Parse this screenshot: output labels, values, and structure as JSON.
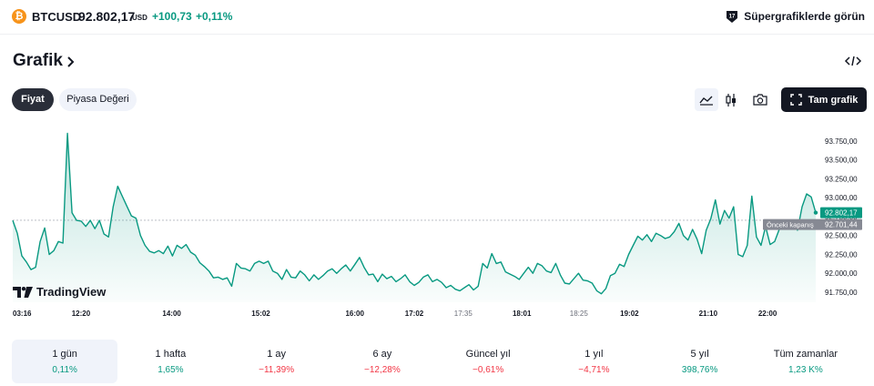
{
  "ticker": {
    "icon_glyph": "₿",
    "symbol": "BTCUSD",
    "price": "92.802,17",
    "currency": "USD",
    "change": "+100,73",
    "change_pct": "+0,11%",
    "super_link": "Süpergrafiklerde görün"
  },
  "header": {
    "title": "Grafik"
  },
  "tabs": [
    {
      "label": "Fiyat"
    },
    {
      "label": "Piyasa Değeri"
    }
  ],
  "toolbar": {
    "fullscreen_label": "Tam grafik"
  },
  "chart_data": {
    "type": "area",
    "color": "#089981",
    "yticks": [
      "93.750,00",
      "93.500,00",
      "93.250,00",
      "93.000,00",
      "92.750,00",
      "92.500,00",
      "92.250,00",
      "92.000,00",
      "91.750,00"
    ],
    "ytick_values": [
      93750,
      93500,
      93250,
      93000,
      92750,
      92500,
      92250,
      92000,
      91750
    ],
    "ylim": [
      91690,
      94000
    ],
    "xticks": [
      {
        "label": "03:16",
        "bold": true,
        "pos": 0.0
      },
      {
        "label": "12:20",
        "bold": true,
        "pos": 0.085
      },
      {
        "label": "14:00",
        "bold": true,
        "pos": 0.198
      },
      {
        "label": "15:02",
        "bold": true,
        "pos": 0.309
      },
      {
        "label": "16:00",
        "bold": true,
        "pos": 0.426
      },
      {
        "label": "17:02",
        "bold": true,
        "pos": 0.5
      },
      {
        "label": "17:35",
        "bold": false,
        "pos": 0.561
      },
      {
        "label": "18:01",
        "bold": true,
        "pos": 0.634
      },
      {
        "label": "18:25",
        "bold": false,
        "pos": 0.705
      },
      {
        "label": "19:02",
        "bold": true,
        "pos": 0.768
      },
      {
        "label": "21:10",
        "bold": true,
        "pos": 0.866
      },
      {
        "label": "22:00",
        "bold": true,
        "pos": 0.94
      }
    ],
    "values": [
      92700,
      92530,
      92230,
      92150,
      92050,
      92080,
      92420,
      92600,
      92250,
      92300,
      92420,
      92400,
      93850,
      92800,
      92700,
      92690,
      92620,
      92700,
      92590,
      92700,
      92520,
      92480,
      92880,
      93150,
      93020,
      92890,
      92760,
      92730,
      92500,
      92370,
      92290,
      92270,
      92300,
      92260,
      92360,
      92230,
      92370,
      92330,
      92380,
      92280,
      92240,
      92140,
      92090,
      92030,
      91940,
      91950,
      91920,
      91940,
      91830,
      92130,
      92070,
      92060,
      92030,
      92130,
      92160,
      92130,
      92160,
      92030,
      92000,
      91920,
      92050,
      91950,
      91940,
      92030,
      91980,
      91900,
      91980,
      91920,
      91970,
      92030,
      92060,
      92000,
      92060,
      92110,
      92030,
      92120,
      92210,
      92080,
      91980,
      91990,
      91890,
      91990,
      91930,
      91960,
      91890,
      91930,
      91980,
      91890,
      91840,
      91880,
      91950,
      91980,
      91890,
      91920,
      91880,
      91810,
      91840,
      91790,
      91770,
      91810,
      91850,
      91780,
      91830,
      92130,
      92070,
      92260,
      92130,
      92150,
      92020,
      91990,
      91960,
      91920,
      92000,
      92080,
      92000,
      92130,
      92100,
      92030,
      92010,
      92130,
      91980,
      91870,
      91860,
      91930,
      92000,
      91910,
      91900,
      91870,
      91770,
      91730,
      91800,
      91970,
      92000,
      92120,
      92090,
      92250,
      92370,
      92490,
      92440,
      92510,
      92420,
      92530,
      92500,
      92460,
      92480,
      92550,
      92660,
      92500,
      92440,
      92580,
      92450,
      92260,
      92570,
      92720,
      92970,
      92650,
      92830,
      92730,
      92880,
      92250,
      92220,
      92370,
      93020,
      92480,
      92370,
      92620,
      92380,
      92420,
      92580,
      92690,
      92660,
      92700,
      92570,
      92880,
      93050,
      93010,
      92802
    ],
    "prev_close": 92701.44,
    "last_price_label": "92.802,17",
    "prev_close_label": "Önceki kapanış",
    "prev_close_value": "92.701,44"
  },
  "logo_text": "TradingView",
  "periods": [
    {
      "label": "1 gün",
      "value": "0,11%",
      "sign": "pos"
    },
    {
      "label": "1 hafta",
      "value": "1,65%",
      "sign": "pos"
    },
    {
      "label": "1 ay",
      "value": "−11,39%",
      "sign": "neg"
    },
    {
      "label": "6 ay",
      "value": "−12,28%",
      "sign": "neg"
    },
    {
      "label": "Güncel yıl",
      "value": "−0,61%",
      "sign": "neg"
    },
    {
      "label": "1 yıl",
      "value": "−4,71%",
      "sign": "neg"
    },
    {
      "label": "5 yıl",
      "value": "398,76%",
      "sign": "pos"
    },
    {
      "label": "Tüm zamanlar",
      "value": "1,23 K%",
      "sign": "pos"
    }
  ]
}
